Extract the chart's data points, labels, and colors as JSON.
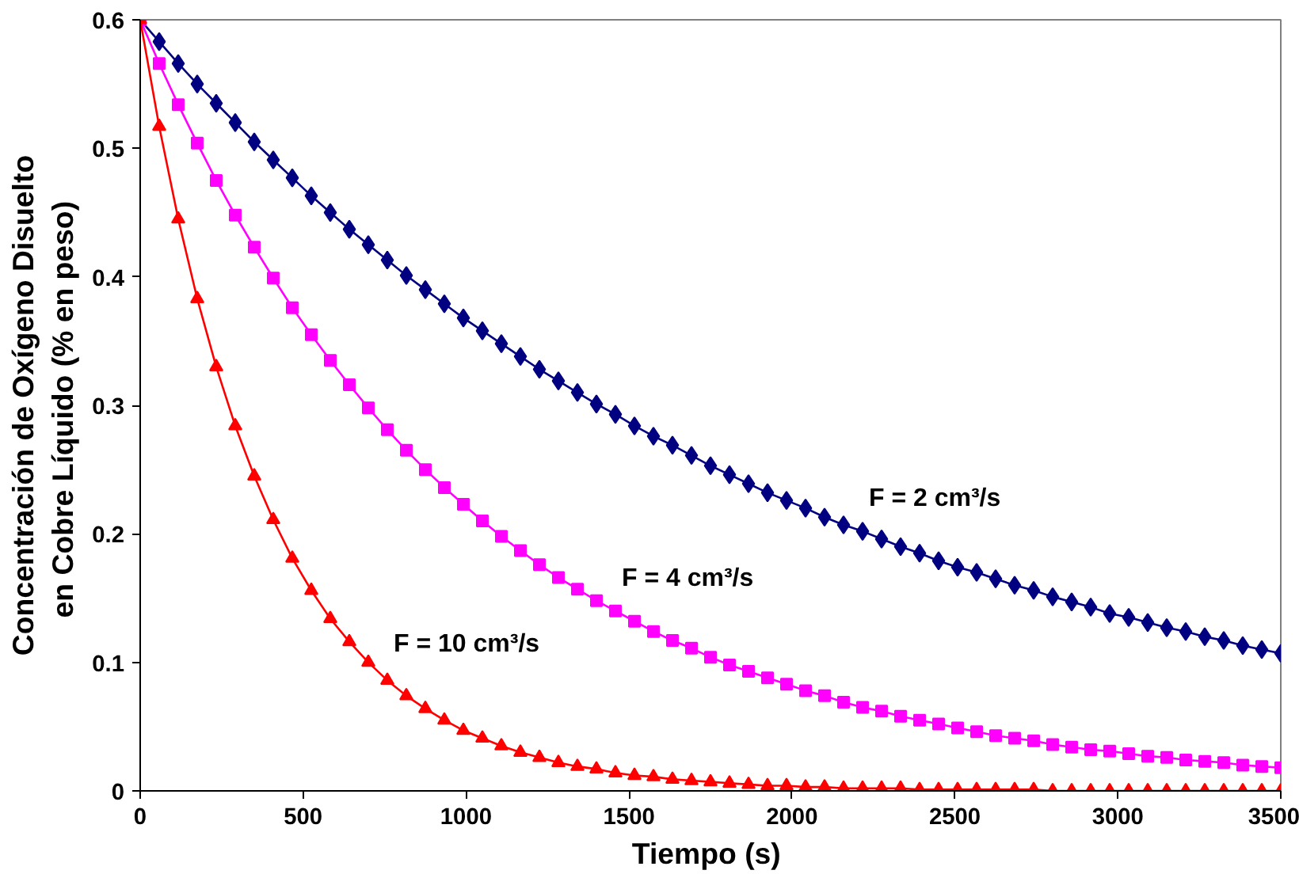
{
  "chart_data": {
    "type": "line",
    "xlabel": "Tiempo  (s)",
    "ylabel": "Concentración de Oxígeno Disuelto\nen Cobre Líquido  (% en peso)",
    "xlim": [
      0,
      3500
    ],
    "ylim": [
      0,
      0.6
    ],
    "xticks": [
      0,
      500,
      1000,
      1500,
      2000,
      2500,
      3000,
      3500
    ],
    "yticks": [
      0,
      0.1,
      0.2,
      0.3,
      0.4,
      0.5,
      0.6
    ],
    "grid": false,
    "line_style": "solid",
    "x": [
      0,
      58.3,
      116.7,
      175,
      233.3,
      291.7,
      350,
      408.3,
      466.7,
      525,
      583.3,
      641.7,
      700,
      758.3,
      816.7,
      875,
      933.3,
      991.7,
      1050,
      1108.3,
      1166.7,
      1225,
      1283.3,
      1341.7,
      1400,
      1458.3,
      1516.7,
      1575,
      1633.3,
      1691.7,
      1750,
      1808.3,
      1866.7,
      1925,
      1983.3,
      2041.7,
      2100,
      2158.3,
      2216.7,
      2275,
      2333.3,
      2391.7,
      2450,
      2508.3,
      2566.7,
      2625,
      2683.3,
      2741.7,
      2800,
      2858.3,
      2916.7,
      2975,
      3033.3,
      3091.7,
      3150,
      3208.3,
      3266.7,
      3325,
      3383.3,
      3441.7,
      3500
    ],
    "series": [
      {
        "name": "F = 2 cm³/s",
        "color": "#000080",
        "marker": "diamond",
        "values": [
          0.6,
          0.583,
          0.566,
          0.55,
          0.535,
          0.52,
          0.505,
          0.491,
          0.477,
          0.463,
          0.45,
          0.437,
          0.425,
          0.413,
          0.401,
          0.39,
          0.379,
          0.368,
          0.358,
          0.348,
          0.338,
          0.328,
          0.319,
          0.31,
          0.301,
          0.293,
          0.284,
          0.276,
          0.269,
          0.261,
          0.253,
          0.246,
          0.239,
          0.232,
          0.226,
          0.22,
          0.213,
          0.207,
          0.202,
          0.196,
          0.19,
          0.185,
          0.179,
          0.174,
          0.17,
          0.165,
          0.16,
          0.156,
          0.151,
          0.147,
          0.143,
          0.138,
          0.135,
          0.131,
          0.127,
          0.124,
          0.12,
          0.117,
          0.113,
          0.11,
          0.107
        ]
      },
      {
        "name": "F = 4 cm³/s",
        "color": "#ff00ff",
        "marker": "square",
        "values": [
          0.6,
          0.566,
          0.534,
          0.504,
          0.475,
          0.448,
          0.423,
          0.399,
          0.376,
          0.355,
          0.335,
          0.316,
          0.298,
          0.281,
          0.265,
          0.25,
          0.236,
          0.223,
          0.21,
          0.198,
          0.187,
          0.176,
          0.166,
          0.157,
          0.148,
          0.14,
          0.132,
          0.124,
          0.117,
          0.111,
          0.104,
          0.098,
          0.093,
          0.088,
          0.083,
          0.078,
          0.074,
          0.069,
          0.065,
          0.062,
          0.058,
          0.055,
          0.052,
          0.049,
          0.046,
          0.043,
          0.041,
          0.039,
          0.036,
          0.034,
          0.032,
          0.031,
          0.029,
          0.027,
          0.026,
          0.024,
          0.023,
          0.022,
          0.02,
          0.019,
          0.018
        ]
      },
      {
        "name": "F = 10 cm³/s",
        "color": "#ff0000",
        "marker": "triangle",
        "values": [
          0.6,
          0.517,
          0.445,
          0.383,
          0.33,
          0.284,
          0.245,
          0.211,
          0.181,
          0.156,
          0.134,
          0.116,
          0.1,
          0.086,
          0.074,
          0.064,
          0.055,
          0.047,
          0.041,
          0.035,
          0.03,
          0.026,
          0.022,
          0.019,
          0.017,
          0.014,
          0.012,
          0.011,
          0.009,
          0.008,
          0.007,
          0.006,
          0.005,
          0.004,
          0.004,
          0.003,
          0.003,
          0.002,
          0.002,
          0.002,
          0.002,
          0.001,
          0.001,
          0.001,
          0.001,
          0.001,
          0.001,
          0.001,
          0,
          0,
          0,
          0,
          0,
          0,
          0,
          0,
          0,
          0,
          0,
          0,
          0
        ]
      }
    ]
  }
}
